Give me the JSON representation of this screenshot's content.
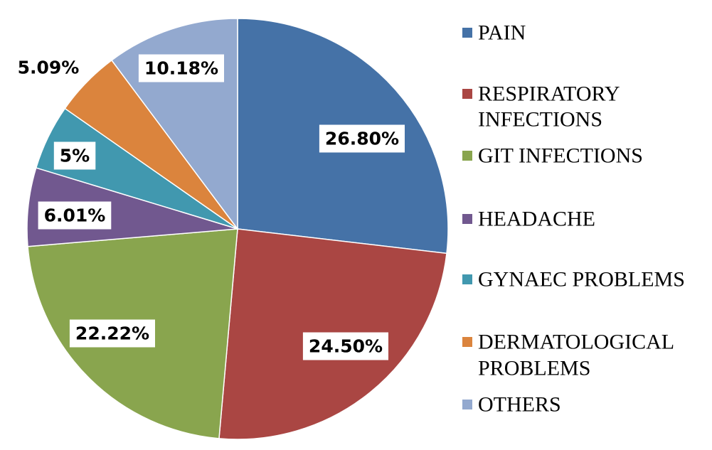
{
  "chart_data": {
    "type": "pie",
    "title": "",
    "slices": [
      {
        "name": "PAIN",
        "legend_lines": [
          "PAIN"
        ],
        "value": 26.8,
        "label": "26.80%",
        "color": "#4572A7"
      },
      {
        "name": "RESPIRATORY INFECTIONS",
        "legend_lines": [
          "RESPIRATORY",
          "INFECTIONS"
        ],
        "value": 24.5,
        "label": "24.50%",
        "color": "#AA4643"
      },
      {
        "name": "GIT INFECTIONS",
        "legend_lines": [
          "GIT INFECTIONS"
        ],
        "value": 22.22,
        "label": "22.22%",
        "color": "#89A54E"
      },
      {
        "name": "HEADACHE",
        "legend_lines": [
          "HEADACHE"
        ],
        "value": 6.01,
        "label": "6.01%",
        "color": "#71588F"
      },
      {
        "name": "GYNAEC PROBLEMS",
        "legend_lines": [
          "GYNAEC PROBLEMS"
        ],
        "value": 5.0,
        "label": "5%",
        "color": "#4198AF"
      },
      {
        "name": "DERMATOLOGICAL PROBLEMS",
        "legend_lines": [
          "DERMATOLOGICAL",
          "PROBLEMS"
        ],
        "value": 5.09,
        "label": "5.09%",
        "color": "#DB843D"
      },
      {
        "name": "OTHERS",
        "legend_lines": [
          "OTHERS"
        ],
        "value": 10.18,
        "label": "10.18%",
        "color": "#93A9CF"
      }
    ],
    "legend_position": "right",
    "start_angle": "12 o'clock",
    "direction": "clockwise"
  }
}
